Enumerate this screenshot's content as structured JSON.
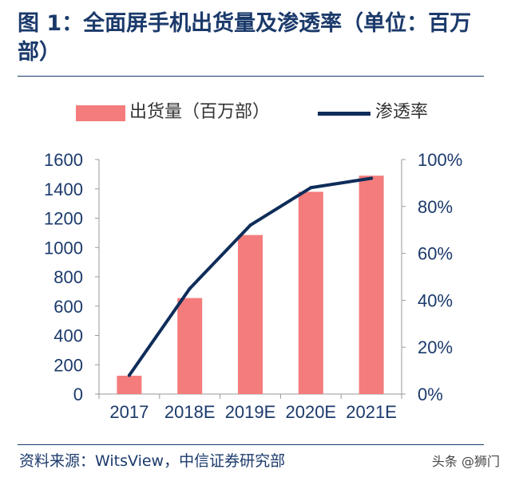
{
  "header": {
    "title": "图 1：全面屏手机出货量及渗透率（单位：百万部）"
  },
  "footer": {
    "source": "资料来源：WitsView，中信证券研究部",
    "watermark": "头条 @狮门"
  },
  "chart_data": {
    "type": "bar",
    "title": "全面屏手机出货量及渗透率（单位：百万部）",
    "categories": [
      "2017",
      "2018E",
      "2019E",
      "2020E",
      "2021E"
    ],
    "series": [
      {
        "name": "出货量（百万部）",
        "type": "bar",
        "axis": "left",
        "values": [
          125,
          655,
          1085,
          1380,
          1490
        ],
        "color": "#f47c7c"
      },
      {
        "name": "渗透率",
        "type": "line",
        "axis": "right",
        "values": [
          8,
          45,
          72,
          88,
          92
        ],
        "color": "#0f2d5a"
      }
    ],
    "y_left": {
      "min": 0,
      "max": 1600,
      "ticks": [
        "0",
        "200",
        "400",
        "600",
        "800",
        "1000",
        "1200",
        "1400",
        "1600"
      ]
    },
    "y_right": {
      "min": 0,
      "max": 100,
      "ticks": [
        "0%",
        "20%",
        "40%",
        "60%",
        "80%",
        "100%"
      ]
    },
    "legend": [
      "出货量（百万部）",
      "渗透率"
    ],
    "legend_position": "top"
  }
}
